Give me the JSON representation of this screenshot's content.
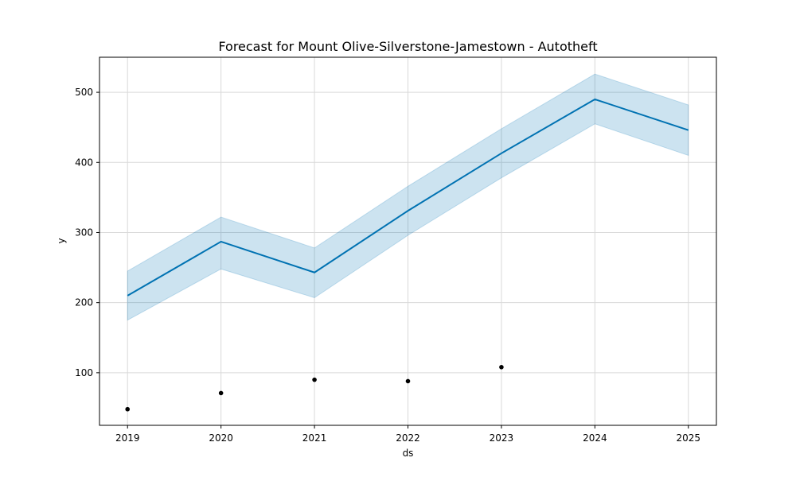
{
  "chart_data": {
    "type": "line",
    "title": "Forecast for Mount Olive-Silverstone-Jamestown - Autotheft",
    "xlabel": "ds",
    "ylabel": "y",
    "xlim": [
      2018.7,
      2025.3
    ],
    "ylim": [
      25,
      550
    ],
    "x_ticks": [
      2019,
      2020,
      2021,
      2022,
      2023,
      2024,
      2025
    ],
    "y_ticks": [
      100,
      200,
      300,
      400,
      500
    ],
    "grid": true,
    "forecast": {
      "x": [
        2019,
        2020,
        2021,
        2022,
        2023,
        2024,
        2025
      ],
      "yhat": [
        210,
        287,
        243,
        331,
        413,
        490,
        446
      ],
      "yhat_lower": [
        175,
        248,
        207,
        296,
        378,
        455,
        410
      ],
      "yhat_upper": [
        245,
        322,
        278,
        366,
        448,
        526,
        482
      ]
    },
    "observed": {
      "x": [
        2019,
        2020,
        2021,
        2022,
        2023
      ],
      "y": [
        48,
        71,
        90,
        88,
        108
      ]
    },
    "colors": {
      "line": "#0072B2",
      "band": "#0072B2",
      "points": "#000000",
      "grid": "#d9d9d9"
    }
  }
}
